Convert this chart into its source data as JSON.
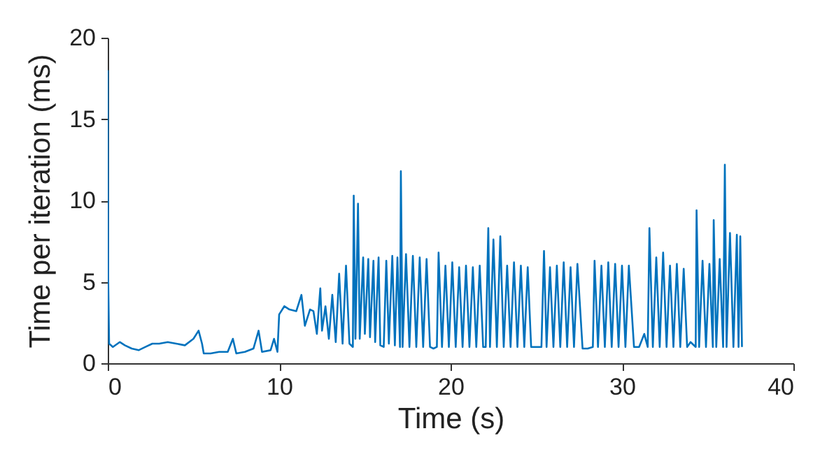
{
  "chart_data": {
    "type": "line",
    "xlabel": "Time (s)",
    "ylabel": "Time per iteration (ms)",
    "xlim": [
      0,
      40
    ],
    "ylim": [
      0,
      20
    ],
    "xticks": [
      0,
      10,
      20,
      30,
      40
    ],
    "yticks": [
      0,
      5,
      10,
      15,
      20
    ],
    "grid": false,
    "line_style": "solid",
    "series": [
      {
        "color": "#0072bd",
        "x": [
          0,
          0.03,
          0.08,
          0.3,
          0.7,
          1,
          1.4,
          1.8,
          2.2,
          2.6,
          3,
          3.5,
          4,
          4.5,
          5,
          5.3,
          5.5,
          5.6,
          6,
          6.5,
          7,
          7.3,
          7.5,
          8,
          8.5,
          8.8,
          9,
          9.5,
          9.7,
          9.9,
          10,
          10.3,
          10.6,
          11,
          11.3,
          11.5,
          11.8,
          12,
          12.2,
          12.4,
          12.5,
          12.7,
          12.9,
          13.1,
          13.3,
          13.5,
          13.7,
          13.9,
          14.1,
          14.3,
          14.35,
          14.45,
          14.6,
          14.7,
          14.9,
          15.0,
          15.2,
          15.3,
          15.5,
          15.6,
          15.8,
          15.9,
          16.1,
          16.25,
          16.4,
          16.6,
          16.75,
          16.9,
          17.05,
          17.1,
          17.2,
          17.4,
          17.6,
          17.8,
          18.0,
          18.2,
          18.4,
          18.6,
          18.8,
          19.0,
          19.2,
          19.3,
          19.5,
          19.7,
          19.9,
          20.1,
          20.3,
          20.5,
          20.7,
          20.9,
          21.1,
          21.3,
          21.5,
          21.7,
          21.9,
          22.05,
          22.2,
          22.3,
          22.5,
          22.7,
          22.9,
          23.1,
          23.3,
          23.5,
          23.7,
          23.9,
          24.1,
          24.3,
          24.5,
          24.7,
          25.0,
          25.3,
          25.45,
          25.6,
          25.8,
          26.0,
          26.2,
          26.4,
          26.6,
          26.8,
          27.0,
          27.2,
          27.4,
          27.7,
          28.0,
          28.3,
          28.4,
          28.6,
          28.8,
          29.0,
          29.2,
          29.4,
          29.6,
          29.8,
          30.0,
          30.2,
          30.4,
          30.7,
          31.0,
          31.3,
          31.5,
          31.6,
          31.8,
          32.0,
          32.2,
          32.4,
          32.6,
          32.8,
          33.0,
          33.2,
          33.4,
          33.6,
          33.8,
          34.0,
          34.3,
          34.35,
          34.5,
          34.7,
          34.9,
          35.1,
          35.3,
          35.35,
          35.5,
          35.7,
          35.9,
          36.0,
          36.1,
          36.3,
          36.5,
          36.7,
          36.8,
          36.9,
          37.0
        ],
        "values": [
          18,
          5,
          1.2,
          1.0,
          1.3,
          1.1,
          0.9,
          0.8,
          1.0,
          1.2,
          1.2,
          1.3,
          1.2,
          1.1,
          1.5,
          2.0,
          1.2,
          0.6,
          0.6,
          0.7,
          0.7,
          1.5,
          0.6,
          0.7,
          0.9,
          2.0,
          0.7,
          0.8,
          1.5,
          0.7,
          3.0,
          3.5,
          3.3,
          3.2,
          4.2,
          2.3,
          3.3,
          3.2,
          1.8,
          4.6,
          2.0,
          3.5,
          1.5,
          4.2,
          1.3,
          5.5,
          1.2,
          6.0,
          1.2,
          1.0,
          10.3,
          1.5,
          9.8,
          1.5,
          6.5,
          1.8,
          6.4,
          1.6,
          6.3,
          1.3,
          6.5,
          1.1,
          1.0,
          6.3,
          1.2,
          6.6,
          1.1,
          6.5,
          1.0,
          11.8,
          1.0,
          6.7,
          1.0,
          6.6,
          1.0,
          6.5,
          1.0,
          6.4,
          1.0,
          0.9,
          1.0,
          6.8,
          1.0,
          6.0,
          1.0,
          6.2,
          1.0,
          5.9,
          1.0,
          6.0,
          1.0,
          5.9,
          1.0,
          6.0,
          1.0,
          1.0,
          8.3,
          1.0,
          7.6,
          1.0,
          7.8,
          1.0,
          6.0,
          1.0,
          6.2,
          1.0,
          6.0,
          1.0,
          5.9,
          1.0,
          1.0,
          1.0,
          6.9,
          1.0,
          5.9,
          1.0,
          6.0,
          1.0,
          6.2,
          1.0,
          5.9,
          1.0,
          6.1,
          0.9,
          0.9,
          1.0,
          6.3,
          1.0,
          6.0,
          1.0,
          6.2,
          1.0,
          6.1,
          1.0,
          6.0,
          1.0,
          6.0,
          1.0,
          1.0,
          1.8,
          1.0,
          8.3,
          1.0,
          6.5,
          1.0,
          6.8,
          1.0,
          6.0,
          1.0,
          6.1,
          1.0,
          5.8,
          1.0,
          1.3,
          1.0,
          9.4,
          1.0,
          6.3,
          1.0,
          6.1,
          1.0,
          8.8,
          1.0,
          6.4,
          1.0,
          12.2,
          1.0,
          8.0,
          1.0,
          7.9,
          1.0,
          7.8,
          1.0
        ]
      }
    ]
  }
}
